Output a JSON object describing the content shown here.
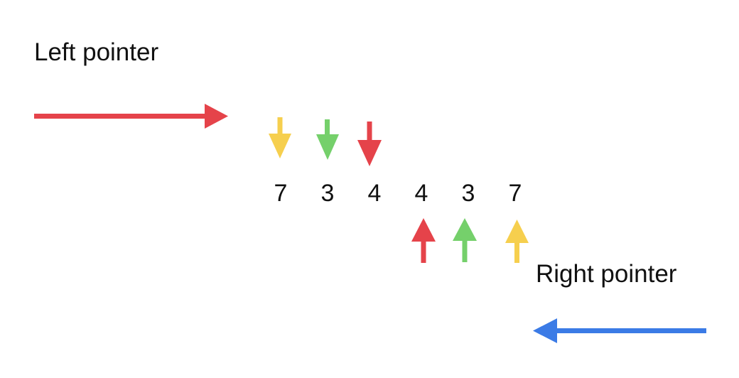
{
  "labels": {
    "left_pointer": "Left pointer",
    "right_pointer": "Right pointer"
  },
  "sequence": [
    "7",
    "3",
    "4",
    "4",
    "3",
    "7"
  ],
  "colors": {
    "pair_outer": "#f6cf4e",
    "pair_middle": "#75d06b",
    "pair_inner": "#e5434a",
    "left_direction": "#e5434a",
    "right_direction": "#3b7be6"
  },
  "pointer_markers": {
    "top_down": [
      "pair_outer",
      "pair_middle",
      "pair_inner"
    ],
    "bottom_up": [
      "pair_inner",
      "pair_middle",
      "pair_outer"
    ]
  }
}
